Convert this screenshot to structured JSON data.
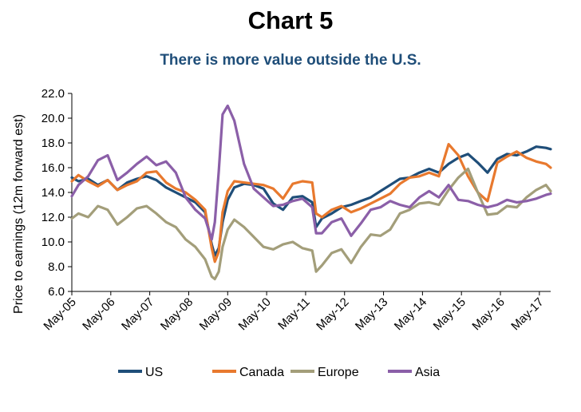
{
  "chart_data": {
    "type": "line",
    "title": "Chart 5",
    "subtitle": "There is more value outside the U.S.",
    "xlabel": "",
    "ylabel": "Price to earnings (12m forward est)",
    "ylim": [
      6.0,
      22.0
    ],
    "xlim": [
      2005.33,
      2017.62
    ],
    "y_ticks": [
      "6.0",
      "8.0",
      "10.0",
      "12.0",
      "14.0",
      "16.0",
      "18.0",
      "20.0",
      "22.0"
    ],
    "x_ticks": [
      "May-05",
      "May-06",
      "May-07",
      "May-08",
      "May-09",
      "May-10",
      "May-11",
      "May-12",
      "May-13",
      "May-14",
      "May-15",
      "May-16",
      "May-17"
    ],
    "grid": false,
    "legend_position": "bottom",
    "colors": {
      "US": "#1f4e79",
      "Canada": "#e8792e",
      "Europe": "#a39e7a",
      "Asia": "#8b5fa8",
      "axis": "#000000"
    },
    "series": [
      {
        "name": "US",
        "x": [
          2005.33,
          2005.5,
          2005.75,
          2006.0,
          2006.25,
          2006.5,
          2006.75,
          2007.0,
          2007.25,
          2007.5,
          2007.75,
          2008.0,
          2008.25,
          2008.5,
          2008.75,
          2008.92,
          2009.0,
          2009.1,
          2009.2,
          2009.33,
          2009.5,
          2009.75,
          2010.0,
          2010.25,
          2010.5,
          2010.75,
          2011.0,
          2011.25,
          2011.5,
          2011.6,
          2011.75,
          2012.0,
          2012.25,
          2012.5,
          2012.75,
          2013.0,
          2013.25,
          2013.5,
          2013.75,
          2014.0,
          2014.25,
          2014.5,
          2014.75,
          2015.0,
          2015.25,
          2015.5,
          2015.75,
          2016.0,
          2016.25,
          2016.5,
          2016.75,
          2017.0,
          2017.25,
          2017.5,
          2017.62
        ],
        "values": [
          15.2,
          14.9,
          15.1,
          14.6,
          15.0,
          14.2,
          14.8,
          15.1,
          15.3,
          15.0,
          14.4,
          14.0,
          13.6,
          13.2,
          12.4,
          9.8,
          8.9,
          9.5,
          11.6,
          13.4,
          14.4,
          14.7,
          14.6,
          14.3,
          13.1,
          12.6,
          13.6,
          13.7,
          13.2,
          11.2,
          11.9,
          12.3,
          12.8,
          13.0,
          13.3,
          13.6,
          14.1,
          14.6,
          15.1,
          15.2,
          15.6,
          15.9,
          15.6,
          16.3,
          16.8,
          17.1,
          16.4,
          15.6,
          16.7,
          17.1,
          17.0,
          17.3,
          17.7,
          17.6,
          17.5
        ]
      },
      {
        "name": "Canada",
        "x": [
          2005.33,
          2005.5,
          2005.75,
          2006.0,
          2006.25,
          2006.5,
          2006.75,
          2007.0,
          2007.25,
          2007.5,
          2007.75,
          2008.0,
          2008.25,
          2008.5,
          2008.75,
          2008.92,
          2009.0,
          2009.1,
          2009.2,
          2009.33,
          2009.5,
          2009.75,
          2010.0,
          2010.25,
          2010.5,
          2010.75,
          2011.0,
          2011.25,
          2011.5,
          2011.6,
          2011.75,
          2012.0,
          2012.25,
          2012.5,
          2012.75,
          2013.0,
          2013.25,
          2013.5,
          2013.75,
          2014.0,
          2014.25,
          2014.5,
          2014.75,
          2015.0,
          2015.25,
          2015.5,
          2015.75,
          2016.0,
          2016.25,
          2016.5,
          2016.75,
          2017.0,
          2017.25,
          2017.5,
          2017.62
        ],
        "values": [
          14.9,
          15.4,
          14.9,
          14.5,
          15.0,
          14.2,
          14.6,
          14.9,
          15.6,
          15.7,
          14.8,
          14.3,
          14.0,
          13.4,
          12.6,
          9.5,
          8.4,
          9.2,
          12.4,
          14.1,
          14.9,
          14.8,
          14.7,
          14.6,
          14.3,
          13.5,
          14.7,
          14.9,
          14.8,
          12.3,
          12.0,
          12.6,
          12.9,
          12.4,
          12.7,
          13.1,
          13.5,
          13.9,
          14.7,
          15.2,
          15.3,
          15.6,
          15.3,
          17.9,
          17.0,
          15.3,
          14.0,
          13.3,
          16.4,
          16.9,
          17.3,
          16.8,
          16.5,
          16.3,
          16.0
        ]
      },
      {
        "name": "Europe",
        "x": [
          2005.33,
          2005.5,
          2005.75,
          2006.0,
          2006.25,
          2006.5,
          2006.75,
          2007.0,
          2007.25,
          2007.5,
          2007.75,
          2008.0,
          2008.25,
          2008.5,
          2008.75,
          2008.92,
          2009.0,
          2009.1,
          2009.2,
          2009.33,
          2009.5,
          2009.75,
          2010.0,
          2010.25,
          2010.5,
          2010.75,
          2011.0,
          2011.25,
          2011.5,
          2011.6,
          2011.75,
          2012.0,
          2012.25,
          2012.5,
          2012.75,
          2013.0,
          2013.25,
          2013.5,
          2013.75,
          2014.0,
          2014.25,
          2014.5,
          2014.75,
          2015.0,
          2015.25,
          2015.5,
          2015.75,
          2016.0,
          2016.25,
          2016.5,
          2016.75,
          2017.0,
          2017.25,
          2017.5,
          2017.62
        ],
        "values": [
          11.9,
          12.3,
          12.0,
          12.9,
          12.6,
          11.4,
          12.0,
          12.7,
          12.9,
          12.3,
          11.6,
          11.2,
          10.2,
          9.6,
          8.6,
          7.2,
          7.0,
          7.6,
          9.6,
          11.0,
          11.8,
          11.2,
          10.4,
          9.6,
          9.4,
          9.8,
          10.0,
          9.5,
          9.3,
          7.6,
          8.1,
          9.1,
          9.4,
          8.3,
          9.6,
          10.6,
          10.5,
          11.0,
          12.3,
          12.6,
          13.1,
          13.2,
          13.0,
          14.2,
          15.2,
          15.9,
          14.0,
          12.2,
          12.3,
          12.9,
          12.8,
          13.6,
          14.2,
          14.6,
          14.1
        ]
      },
      {
        "name": "Asia",
        "x": [
          2005.33,
          2005.5,
          2005.75,
          2006.0,
          2006.25,
          2006.5,
          2006.75,
          2007.0,
          2007.25,
          2007.5,
          2007.75,
          2008.0,
          2008.25,
          2008.5,
          2008.75,
          2008.92,
          2009.0,
          2009.1,
          2009.2,
          2009.33,
          2009.5,
          2009.75,
          2010.0,
          2010.25,
          2010.5,
          2010.75,
          2011.0,
          2011.25,
          2011.5,
          2011.6,
          2011.75,
          2012.0,
          2012.25,
          2012.5,
          2012.75,
          2013.0,
          2013.25,
          2013.5,
          2013.75,
          2014.0,
          2014.25,
          2014.5,
          2014.75,
          2015.0,
          2015.25,
          2015.5,
          2015.75,
          2016.0,
          2016.25,
          2016.5,
          2016.75,
          2017.0,
          2017.25,
          2017.5,
          2017.62
        ],
        "values": [
          13.7,
          14.6,
          15.3,
          16.6,
          17.0,
          15.0,
          15.6,
          16.3,
          16.9,
          16.2,
          16.5,
          15.6,
          13.6,
          12.6,
          11.9,
          10.2,
          11.6,
          15.7,
          20.3,
          21.0,
          19.8,
          16.3,
          14.3,
          13.6,
          12.9,
          13.0,
          13.3,
          13.5,
          12.8,
          10.7,
          10.7,
          11.6,
          11.9,
          10.5,
          11.5,
          12.6,
          12.8,
          13.3,
          13.0,
          12.8,
          13.6,
          14.1,
          13.6,
          14.6,
          13.4,
          13.3,
          13.0,
          12.8,
          13.0,
          13.4,
          13.2,
          13.3,
          13.5,
          13.8,
          13.9
        ]
      }
    ]
  }
}
